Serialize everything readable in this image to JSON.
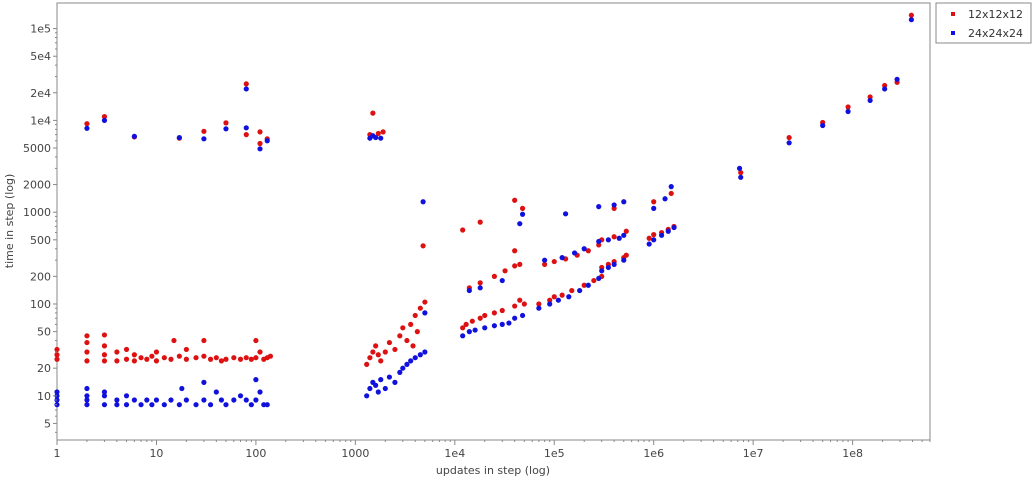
{
  "chart_data": {
    "type": "scatter",
    "xlabel": "updates in step (log)",
    "ylabel": "time in step (log)",
    "x_scale": "log",
    "y_scale": "log",
    "xlim": [
      1,
      600000000
    ],
    "ylim": [
      3.3,
      190000
    ],
    "x_ticks": [
      {
        "value": 1,
        "label": "1"
      },
      {
        "value": 10,
        "label": "10"
      },
      {
        "value": 100,
        "label": "100"
      },
      {
        "value": 1000,
        "label": "1000"
      },
      {
        "value": 10000,
        "label": "1e4"
      },
      {
        "value": 100000,
        "label": "1e5"
      },
      {
        "value": 1000000,
        "label": "1e6"
      },
      {
        "value": 10000000,
        "label": "1e7"
      },
      {
        "value": 100000000,
        "label": "1e8"
      }
    ],
    "y_ticks": [
      {
        "value": 5,
        "label": "5"
      },
      {
        "value": 10,
        "label": "10"
      },
      {
        "value": 20,
        "label": "20"
      },
      {
        "value": 50,
        "label": "50"
      },
      {
        "value": 100,
        "label": "100"
      },
      {
        "value": 200,
        "label": "200"
      },
      {
        "value": 500,
        "label": "500"
      },
      {
        "value": 1000,
        "label": "1000"
      },
      {
        "value": 2000,
        "label": "2000"
      },
      {
        "value": 5000,
        "label": "5000"
      },
      {
        "value": 10000,
        "label": "1e4"
      },
      {
        "value": 20000,
        "label": "2e4"
      },
      {
        "value": 50000,
        "label": "5e4"
      },
      {
        "value": 100000,
        "label": "1e5"
      }
    ],
    "grid": false,
    "legend_position": "outside-top-right",
    "series": [
      {
        "name": "12x12x12",
        "color": "#dd1111",
        "points": [
          [
            1,
            25
          ],
          [
            1,
            28
          ],
          [
            1,
            32
          ],
          [
            2,
            24
          ],
          [
            2,
            30
          ],
          [
            2,
            38
          ],
          [
            2,
            45
          ],
          [
            3,
            24
          ],
          [
            3,
            28
          ],
          [
            3,
            35
          ],
          [
            3,
            46
          ],
          [
            4,
            24
          ],
          [
            4,
            30
          ],
          [
            5,
            25
          ],
          [
            5,
            32
          ],
          [
            6,
            24
          ],
          [
            6,
            28
          ],
          [
            7,
            26
          ],
          [
            8,
            25
          ],
          [
            9,
            27
          ],
          [
            10,
            24
          ],
          [
            10,
            30
          ],
          [
            12,
            26
          ],
          [
            14,
            25
          ],
          [
            15,
            40
          ],
          [
            17,
            27
          ],
          [
            20,
            25
          ],
          [
            20,
            32
          ],
          [
            25,
            26
          ],
          [
            30,
            27
          ],
          [
            30,
            40
          ],
          [
            35,
            25
          ],
          [
            40,
            26
          ],
          [
            45,
            24
          ],
          [
            50,
            25
          ],
          [
            60,
            26
          ],
          [
            70,
            25
          ],
          [
            80,
            26
          ],
          [
            90,
            25
          ],
          [
            100,
            26
          ],
          [
            100,
            40
          ],
          [
            110,
            30
          ],
          [
            120,
            25
          ],
          [
            130,
            26
          ],
          [
            140,
            27
          ],
          [
            2,
            9200
          ],
          [
            3,
            11000
          ],
          [
            6,
            6600
          ],
          [
            17,
            6400
          ],
          [
            30,
            7600
          ],
          [
            50,
            9400
          ],
          [
            80,
            25000
          ],
          [
            80,
            7000
          ],
          [
            110,
            7500
          ],
          [
            110,
            5600
          ],
          [
            130,
            6300
          ],
          [
            1500,
            12000
          ],
          [
            1400,
            7000
          ],
          [
            1700,
            7200
          ],
          [
            1900,
            7500
          ],
          [
            1300,
            22
          ],
          [
            1400,
            26
          ],
          [
            1500,
            30
          ],
          [
            1600,
            35
          ],
          [
            1700,
            28
          ],
          [
            1800,
            24
          ],
          [
            2000,
            30
          ],
          [
            2200,
            38
          ],
          [
            2500,
            32
          ],
          [
            2800,
            45
          ],
          [
            3000,
            55
          ],
          [
            3300,
            40
          ],
          [
            3600,
            60
          ],
          [
            4000,
            75
          ],
          [
            4500,
            90
          ],
          [
            5000,
            105
          ],
          [
            4800,
            430
          ],
          [
            4200,
            50
          ],
          [
            3800,
            35
          ],
          [
            12000,
            55
          ],
          [
            13000,
            60
          ],
          [
            15000,
            65
          ],
          [
            18000,
            70
          ],
          [
            20000,
            75
          ],
          [
            25000,
            80
          ],
          [
            30000,
            85
          ],
          [
            40000,
            95
          ],
          [
            45000,
            110
          ],
          [
            50000,
            100
          ],
          [
            12000,
            640
          ],
          [
            18000,
            780
          ],
          [
            40000,
            1350
          ],
          [
            48000,
            1100
          ],
          [
            14000,
            150
          ],
          [
            18000,
            170
          ],
          [
            25000,
            200
          ],
          [
            32000,
            230
          ],
          [
            40000,
            260
          ],
          [
            45000,
            270
          ],
          [
            40000,
            380
          ],
          [
            70000,
            100
          ],
          [
            90000,
            110
          ],
          [
            100000,
            120
          ],
          [
            120000,
            125
          ],
          [
            150000,
            140
          ],
          [
            200000,
            160
          ],
          [
            250000,
            180
          ],
          [
            300000,
            200
          ],
          [
            80000,
            270
          ],
          [
            100000,
            290
          ],
          [
            130000,
            310
          ],
          [
            170000,
            340
          ],
          [
            220000,
            380
          ],
          [
            280000,
            440
          ],
          [
            300000,
            250
          ],
          [
            350000,
            270
          ],
          [
            400000,
            290
          ],
          [
            500000,
            320
          ],
          [
            530000,
            340
          ],
          [
            300000,
            500
          ],
          [
            400000,
            540
          ],
          [
            530000,
            620
          ],
          [
            400000,
            1100
          ],
          [
            900000,
            520
          ],
          [
            1000000,
            570
          ],
          [
            1200000,
            600
          ],
          [
            1400000,
            650
          ],
          [
            1600000,
            700
          ],
          [
            1000000,
            1300
          ],
          [
            1500000,
            1600
          ],
          [
            7500000,
            2700
          ],
          [
            23000000,
            6500
          ],
          [
            50000000,
            9500
          ],
          [
            90000000,
            14000
          ],
          [
            150000000,
            18000
          ],
          [
            210000000,
            24000
          ],
          [
            280000000,
            26000
          ],
          [
            390000000,
            140000
          ]
        ]
      },
      {
        "name": "24x24x24",
        "color": "#1111dd",
        "points": [
          [
            1,
            8
          ],
          [
            1,
            9
          ],
          [
            1,
            10
          ],
          [
            1,
            11
          ],
          [
            2,
            8
          ],
          [
            2,
            9
          ],
          [
            2,
            10
          ],
          [
            2,
            12
          ],
          [
            3,
            8
          ],
          [
            3,
            10
          ],
          [
            3,
            11
          ],
          [
            4,
            8
          ],
          [
            4,
            9
          ],
          [
            5,
            8
          ],
          [
            5,
            10
          ],
          [
            6,
            9
          ],
          [
            7,
            8
          ],
          [
            8,
            9
          ],
          [
            9,
            8
          ],
          [
            10,
            9
          ],
          [
            12,
            8
          ],
          [
            14,
            9
          ],
          [
            17,
            8
          ],
          [
            18,
            12
          ],
          [
            20,
            9
          ],
          [
            25,
            8
          ],
          [
            30,
            9
          ],
          [
            30,
            14
          ],
          [
            35,
            8
          ],
          [
            40,
            11
          ],
          [
            45,
            9
          ],
          [
            50,
            8
          ],
          [
            60,
            9
          ],
          [
            70,
            10
          ],
          [
            80,
            9
          ],
          [
            90,
            8
          ],
          [
            100,
            9
          ],
          [
            100,
            15
          ],
          [
            110,
            11
          ],
          [
            120,
            8
          ],
          [
            130,
            8
          ],
          [
            2,
            8200
          ],
          [
            3,
            10000
          ],
          [
            6,
            6700
          ],
          [
            17,
            6500
          ],
          [
            30,
            6300
          ],
          [
            50,
            8100
          ],
          [
            80,
            22000
          ],
          [
            80,
            8300
          ],
          [
            110,
            4900
          ],
          [
            130,
            6000
          ],
          [
            1400,
            6400
          ],
          [
            1500,
            6800
          ],
          [
            1600,
            6500
          ],
          [
            1800,
            6400
          ],
          [
            1300,
            10
          ],
          [
            1400,
            12
          ],
          [
            1500,
            14
          ],
          [
            1600,
            13
          ],
          [
            1700,
            11
          ],
          [
            1800,
            15
          ],
          [
            2000,
            12
          ],
          [
            2200,
            16
          ],
          [
            2500,
            14
          ],
          [
            2800,
            18
          ],
          [
            3000,
            20
          ],
          [
            3300,
            22
          ],
          [
            3600,
            24
          ],
          [
            4000,
            26
          ],
          [
            4500,
            28
          ],
          [
            5000,
            30
          ],
          [
            4800,
            1300
          ],
          [
            5000,
            80
          ],
          [
            12000,
            45
          ],
          [
            14000,
            50
          ],
          [
            16000,
            52
          ],
          [
            20000,
            55
          ],
          [
            25000,
            58
          ],
          [
            30000,
            60
          ],
          [
            35000,
            62
          ],
          [
            40000,
            70
          ],
          [
            48000,
            75
          ],
          [
            14000,
            140
          ],
          [
            18000,
            150
          ],
          [
            30000,
            180
          ],
          [
            45000,
            750
          ],
          [
            48000,
            950
          ],
          [
            70000,
            90
          ],
          [
            90000,
            100
          ],
          [
            110000,
            110
          ],
          [
            140000,
            120
          ],
          [
            180000,
            140
          ],
          [
            220000,
            160
          ],
          [
            280000,
            190
          ],
          [
            80000,
            300
          ],
          [
            120000,
            320
          ],
          [
            160000,
            360
          ],
          [
            200000,
            400
          ],
          [
            300000,
            230
          ],
          [
            350000,
            250
          ],
          [
            400000,
            270
          ],
          [
            500000,
            300
          ],
          [
            280000,
            480
          ],
          [
            350000,
            500
          ],
          [
            450000,
            520
          ],
          [
            500000,
            560
          ],
          [
            130000,
            960
          ],
          [
            280000,
            1150
          ],
          [
            400000,
            1200
          ],
          [
            500000,
            1300
          ],
          [
            900000,
            450
          ],
          [
            1000000,
            500
          ],
          [
            1200000,
            560
          ],
          [
            1400000,
            620
          ],
          [
            1600000,
            680
          ],
          [
            1000000,
            1100
          ],
          [
            1500000,
            1900
          ],
          [
            1300000,
            1400
          ],
          [
            7500000,
            2400
          ],
          [
            7300000,
            3000
          ],
          [
            23000000,
            5700
          ],
          [
            50000000,
            8800
          ],
          [
            90000000,
            12500
          ],
          [
            150000000,
            16500
          ],
          [
            210000000,
            22000
          ],
          [
            280000000,
            28000
          ],
          [
            390000000,
            125000
          ]
        ]
      }
    ]
  }
}
